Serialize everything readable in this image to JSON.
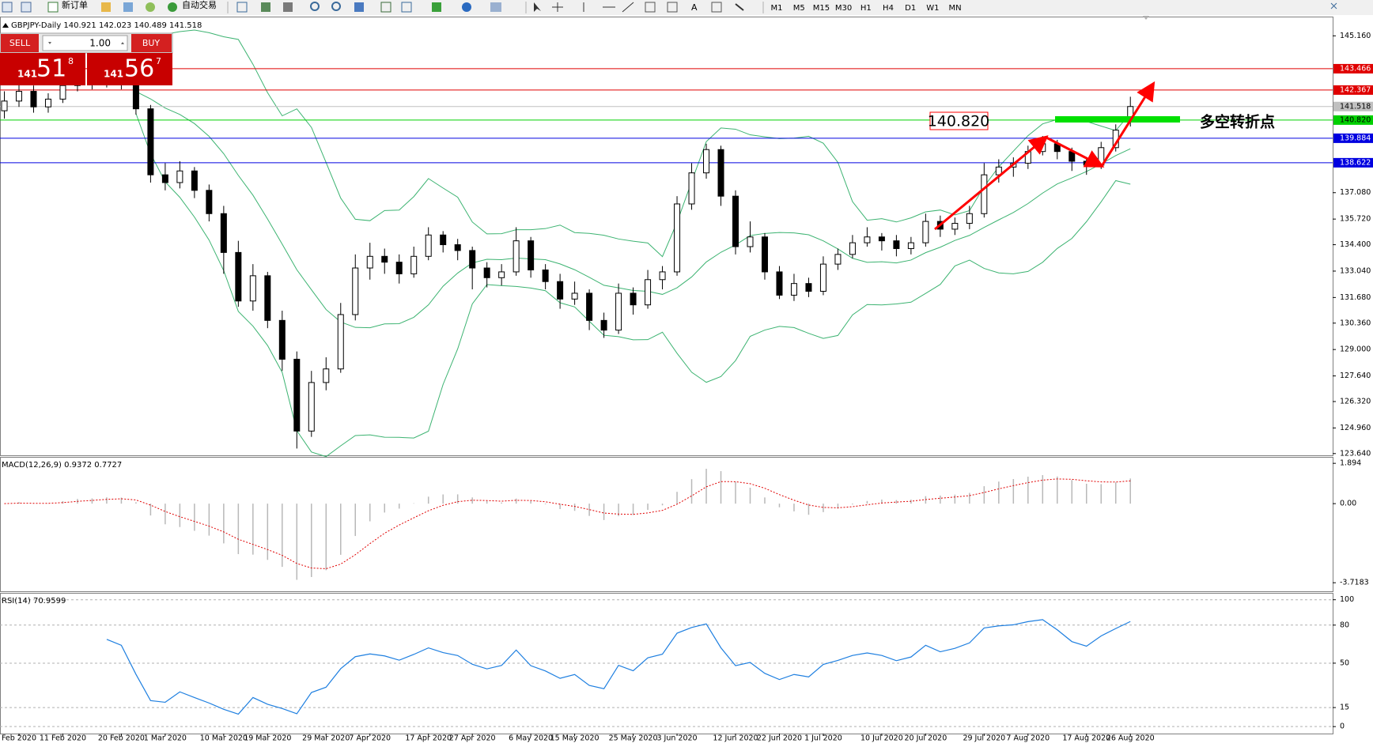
{
  "toolbar": {
    "new_order": "新订单",
    "auto_trading": "自动交易",
    "timeframes": [
      "M1",
      "M5",
      "M15",
      "M30",
      "H1",
      "H4",
      "D1",
      "W1",
      "MN"
    ]
  },
  "trade_panel": {
    "sell": "SELL",
    "buy": "BUY",
    "lot": "1.00",
    "sell_price": {
      "big": "141",
      "main": "51",
      "small": "8"
    },
    "buy_price": {
      "big": "141",
      "main": "56",
      "small": "7"
    }
  },
  "chart_data": [
    {
      "type": "candlestick",
      "title": "GBPJPY-Daily 140.921 142.023 140.489 141.518",
      "categories": [
        null,
        "Feb 2020",
        null,
        null,
        "11 Feb 2020",
        null,
        null,
        null,
        "20 Feb 2020",
        null,
        null,
        "1 Mar 2020",
        null,
        null,
        null,
        "10 Mar 2020",
        null,
        null,
        "19 Mar 2020",
        null,
        null,
        null,
        "29 Mar 2020",
        null,
        null,
        "7 Apr 2020",
        null,
        null,
        null,
        "17 Apr 2020",
        null,
        null,
        "27 Apr 2020",
        null,
        null,
        null,
        "6 May 2020",
        null,
        null,
        "15 May 2020",
        null,
        null,
        null,
        "25 May 2020",
        null,
        null,
        "3 Jun 2020",
        null,
        null,
        null,
        "12 Jun 2020",
        null,
        null,
        "22 Jun 2020",
        null,
        null,
        "1 Jul 2020",
        null,
        null,
        null,
        "10 Jul 2020",
        null,
        null,
        "20 Jul 2020",
        null,
        null,
        null,
        "29 Jul 2020",
        null,
        null,
        "7 Aug 2020",
        null,
        null,
        null,
        "17 Aug 2020",
        null,
        null,
        "26 Aug 2020"
      ],
      "open": [
        141.3,
        141.8,
        142.3,
        141.5,
        141.9,
        142.6,
        142.9,
        142.7,
        143.0,
        142.8,
        141.4,
        138.0,
        137.6,
        138.2,
        137.2,
        136.0,
        134.0,
        131.5,
        132.8,
        130.5,
        128.5,
        124.8,
        127.3,
        128.0,
        130.8,
        133.2,
        133.8,
        133.5,
        132.9,
        133.8,
        134.9,
        134.4,
        134.1,
        133.2,
        132.7,
        133.0,
        134.6,
        133.1,
        132.5,
        131.6,
        131.9,
        130.5,
        130.0,
        131.9,
        131.3,
        132.6,
        133.0,
        136.5,
        138.1,
        139.3,
        136.9,
        134.3,
        134.8,
        133.0,
        131.8,
        132.4,
        132.0,
        133.4,
        133.9,
        134.5,
        134.8,
        134.6,
        134.2,
        134.5,
        135.6,
        135.2,
        135.5,
        136.0,
        138.0,
        138.4,
        138.6,
        139.2,
        139.6,
        139.2,
        138.7,
        138.5,
        139.4,
        140.921
      ],
      "high": [
        142.3,
        142.8,
        142.6,
        142.2,
        142.9,
        143.2,
        143.1,
        143.4,
        143.3,
        143.0,
        141.6,
        138.6,
        138.7,
        138.4,
        137.5,
        136.4,
        134.6,
        133.4,
        133.0,
        131.0,
        128.9,
        127.9,
        128.6,
        131.4,
        133.9,
        134.5,
        134.2,
        133.9,
        134.3,
        135.3,
        135.1,
        134.7,
        134.3,
        133.5,
        133.4,
        135.3,
        134.8,
        133.4,
        132.9,
        132.5,
        132.1,
        130.9,
        132.4,
        132.2,
        133.1,
        133.3,
        136.9,
        138.6,
        139.6,
        139.5,
        137.2,
        135.6,
        135.0,
        133.3,
        132.9,
        132.7,
        133.8,
        134.2,
        134.9,
        135.3,
        135.0,
        134.9,
        134.8,
        136.0,
        135.9,
        135.8,
        136.4,
        138.6,
        138.8,
        138.9,
        139.5,
        140.0,
        139.8,
        139.4,
        138.9,
        139.7,
        140.6,
        142.023
      ],
      "low": [
        140.9,
        141.5,
        141.2,
        141.2,
        141.7,
        142.3,
        142.4,
        142.5,
        142.4,
        141.1,
        137.6,
        137.2,
        137.3,
        136.8,
        135.6,
        132.9,
        131.2,
        131.0,
        130.1,
        127.9,
        123.9,
        124.5,
        126.9,
        127.8,
        130.5,
        132.6,
        132.9,
        132.4,
        132.7,
        133.6,
        134.0,
        133.6,
        132.1,
        132.2,
        132.3,
        132.8,
        132.7,
        132.1,
        131.1,
        131.3,
        130.0,
        129.6,
        129.8,
        130.8,
        131.1,
        132.1,
        132.8,
        136.2,
        137.8,
        136.4,
        133.9,
        134.0,
        132.6,
        131.6,
        131.5,
        131.7,
        131.8,
        133.1,
        133.7,
        134.3,
        134.1,
        133.8,
        133.9,
        134.3,
        134.8,
        134.9,
        135.2,
        135.8,
        137.6,
        137.9,
        138.3,
        139.0,
        138.8,
        138.2,
        138.0,
        138.3,
        139.2,
        140.489
      ],
      "close": [
        141.8,
        142.3,
        141.5,
        141.9,
        142.6,
        142.9,
        142.7,
        143.0,
        142.8,
        141.4,
        138.0,
        137.6,
        138.2,
        137.2,
        136.0,
        134.0,
        131.5,
        132.8,
        130.5,
        128.5,
        124.8,
        127.3,
        128.0,
        130.8,
        133.2,
        133.8,
        133.5,
        132.9,
        133.8,
        134.9,
        134.4,
        134.1,
        133.2,
        132.7,
        133.0,
        134.6,
        133.1,
        132.5,
        131.6,
        131.9,
        130.5,
        130.0,
        131.9,
        131.3,
        132.6,
        133.0,
        136.5,
        138.1,
        139.3,
        136.9,
        134.3,
        134.8,
        133.0,
        131.8,
        132.4,
        132.0,
        133.4,
        133.9,
        134.5,
        134.8,
        134.6,
        134.2,
        134.5,
        135.6,
        135.2,
        135.5,
        136.0,
        138.0,
        138.4,
        138.6,
        139.2,
        139.6,
        139.2,
        138.7,
        138.5,
        139.4,
        140.3,
        141.518
      ],
      "ylim": [
        123.55,
        146.11
      ],
      "yticks": [
        {
          "value": 145.16,
          "label": "145.160"
        },
        {
          "value": 137.08,
          "label": "137.080"
        },
        {
          "value": 135.72,
          "label": "135.720"
        },
        {
          "value": 134.4,
          "label": "134.400"
        },
        {
          "value": 133.04,
          "label": "133.040"
        },
        {
          "value": 131.68,
          "label": "131.680"
        },
        {
          "value": 130.36,
          "label": "130.360"
        },
        {
          "value": 129,
          "label": "129.000"
        },
        {
          "value": 127.64,
          "label": "127.640"
        },
        {
          "value": 126.32,
          "label": "126.320"
        },
        {
          "value": 124.96,
          "label": "124.960"
        },
        {
          "value": 123.64,
          "label": "123.640"
        }
      ],
      "levels": [
        {
          "value": 143.466,
          "label": "143.466",
          "color": "#e00000",
          "text_color": "#ffffff"
        },
        {
          "value": 142.367,
          "label": "142.367",
          "color": "#e00000",
          "text_color": "#ffffff"
        },
        {
          "value": 141.518,
          "label": "141.518",
          "color": "#c0c0c0",
          "text_color": "#000000"
        },
        {
          "value": 140.82,
          "label": "140.820",
          "color": "#00d000",
          "text_color": "#000000"
        },
        {
          "value": 139.884,
          "label": "139.884",
          "color": "#0000e0",
          "text_color": "#ffffff"
        },
        {
          "value": 138.622,
          "label": "138.622",
          "color": "#0000e0",
          "text_color": "#ffffff"
        }
      ],
      "annotations": [
        {
          "text": "140.820"
        },
        {
          "text": "多空转折点"
        }
      ]
    },
    {
      "type": "macd",
      "title": "MACD(12,26,9) 0.9372 0.7727",
      "ylim": [
        -4.12,
        2.16
      ],
      "yticks": [
        {
          "value": 1.894,
          "label": "1.894"
        },
        {
          "value": 0,
          "label": "0.00"
        },
        -3.7183
      ]
    },
    {
      "type": "rsi",
      "title": "RSI(14) 70.9599",
      "ylim": [
        -5.5,
        104.8
      ],
      "yticks": [
        100,
        80,
        50,
        15,
        0
      ]
    }
  ]
}
